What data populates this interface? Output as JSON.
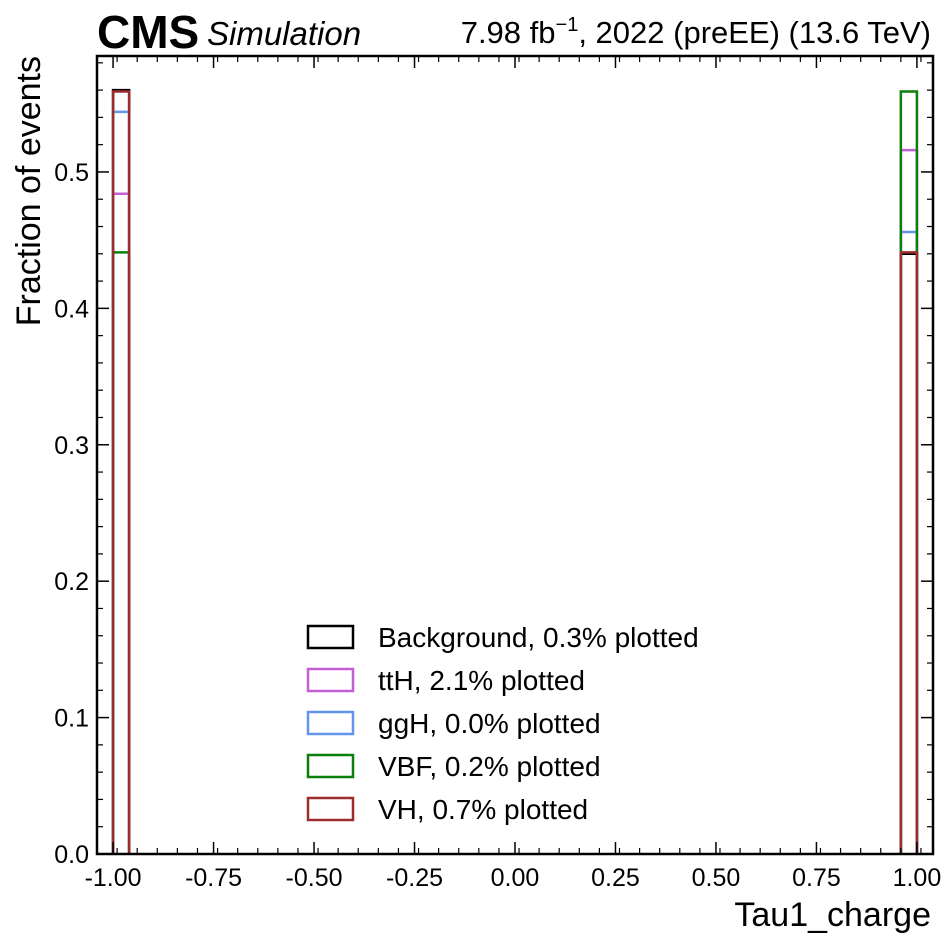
{
  "header": {
    "experiment": "CMS",
    "status": "Simulation",
    "lumi_text": "7.98 fb",
    "lumi_exp": "−1",
    "run_text": ", 2022 (preEE) (13.6 TeV)"
  },
  "chart_data": {
    "type": "histogram-step",
    "title": "",
    "xlabel": "Tau1_charge",
    "ylabel": "Fraction of events",
    "xlim": [
      -1.04,
      1.04
    ],
    "ylim": [
      0.0,
      0.585
    ],
    "xticks": [
      -1.0,
      -0.75,
      -0.5,
      -0.25,
      0.0,
      0.25,
      0.5,
      0.75,
      1.0
    ],
    "xtick_labels": [
      "-1.00",
      "-0.75",
      "-0.50",
      "-0.25",
      "0.00",
      "0.25",
      "0.50",
      "0.75",
      "1.00"
    ],
    "yticks": [
      0.0,
      0.1,
      0.2,
      0.3,
      0.4,
      0.5
    ],
    "ytick_labels": [
      "0.0",
      "0.1",
      "0.2",
      "0.3",
      "0.4",
      "0.5"
    ],
    "bins": [
      [
        -1.0,
        -0.96
      ],
      [
        0.96,
        1.0
      ]
    ],
    "legend_position": "lower-center",
    "series": [
      {
        "name": "Background, 0.3% plotted",
        "color": "#000000",
        "values": [
          0.56,
          0.44
        ]
      },
      {
        "name": "ttH, 2.1% plotted",
        "color": "#c45fd6",
        "values": [
          0.484,
          0.516
        ]
      },
      {
        "name": "ggH, 0.0% plotted",
        "color": "#6495ed",
        "values": [
          0.544,
          0.456
        ]
      },
      {
        "name": "VBF, 0.2% plotted",
        "color": "#0a7f0a",
        "values": [
          0.441,
          0.559
        ]
      },
      {
        "name": "VH, 0.7% plotted",
        "color": "#9b2d2d",
        "values": [
          0.559,
          0.441
        ]
      }
    ]
  }
}
